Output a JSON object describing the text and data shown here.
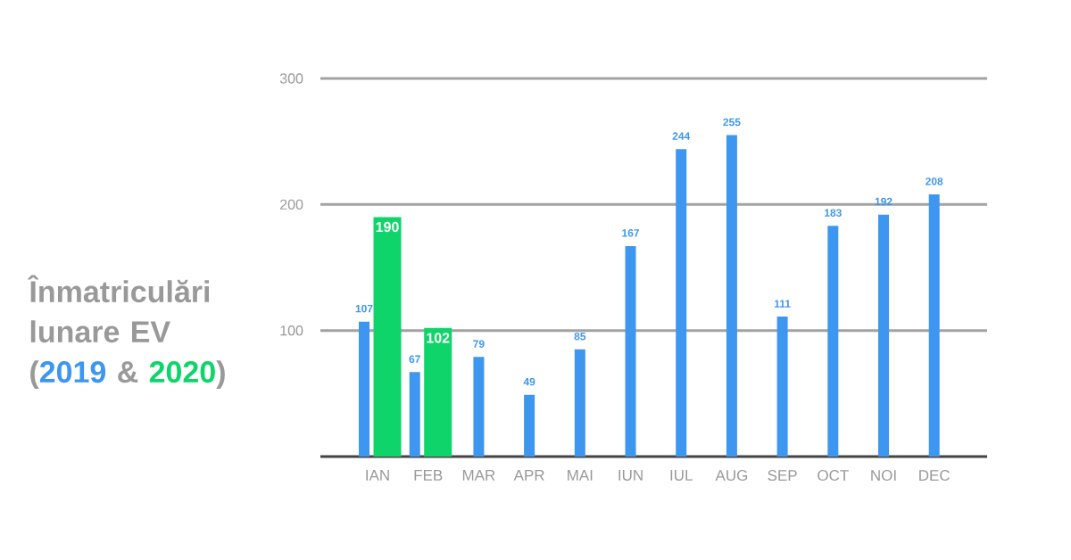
{
  "chart_data": {
    "type": "bar",
    "title": "Înmatriculări lunare EV",
    "annotations": [
      "(",
      "&",
      ")"
    ],
    "categories": [
      "IAN",
      "FEB",
      "MAR",
      "APR",
      "MAI",
      "IUN",
      "IUL",
      "AUG",
      "SEP",
      "OCT",
      "NOI",
      "DEC"
    ],
    "series": [
      {
        "name": "2019",
        "color": "#3d96f0",
        "values": [
          107,
          67,
          79,
          49,
          85,
          167,
          244,
          255,
          111,
          183,
          192,
          208
        ]
      },
      {
        "name": "2020",
        "color": "#0fd46a",
        "values": [
          190,
          102,
          null,
          null,
          null,
          null,
          null,
          null,
          null,
          null,
          null,
          null
        ]
      }
    ],
    "ylim": [
      0,
      300
    ],
    "yticks": [
      100,
      200,
      300
    ],
    "grid": "y",
    "data_labels": true
  }
}
